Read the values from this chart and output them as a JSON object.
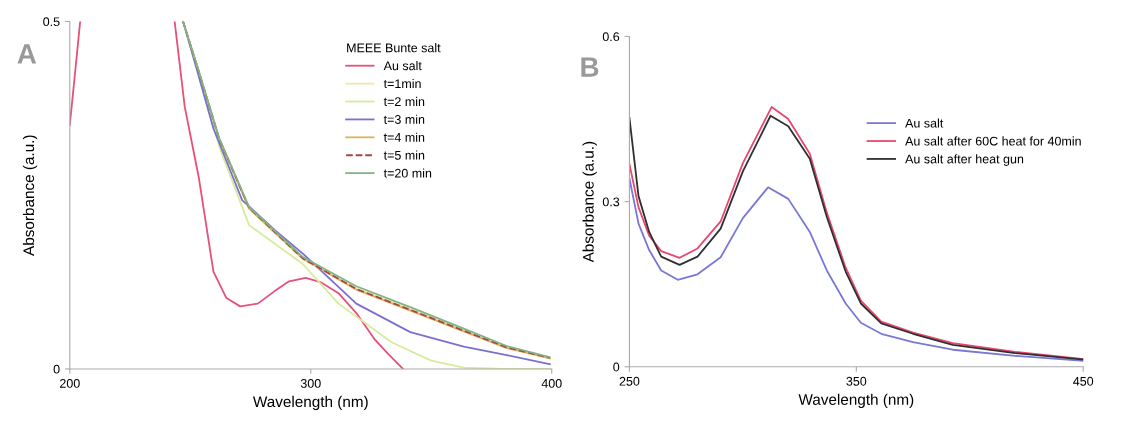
{
  "chart_data": [
    {
      "type": "line",
      "xlabel": "Wavelength (nm)",
      "ylabel": "Absorbance (a.u.)",
      "legend_title": "MEEE Bunte salt",
      "legend": "top right",
      "grid": false,
      "marker": "none",
      "line_style": "solid",
      "xlim": [
        200,
        400
      ],
      "ylim": [
        0,
        0.5
      ],
      "xticks": [
        200,
        300,
        400
      ],
      "yticks": [
        0,
        0.5
      ],
      "annotations": [
        "A"
      ],
      "series": [
        {
          "name": "Au salt",
          "color": "#e8507a",
          "x": [
            200,
            202,
            204.3,
            220,
            243.5,
            247.7,
            253.6,
            259.6,
            265,
            270.7,
            278,
            285,
            291,
            297.9,
            304,
            311.5,
            319,
            326.4,
            332,
            338.3
          ],
          "values": [
            0.351,
            0.42,
            0.5,
            null,
            0.5,
            0.377,
            0.274,
            0.14,
            0.102,
            0.09,
            0.094,
            0.112,
            0.126,
            0.131,
            0.125,
            0.109,
            0.08,
            0.043,
            0.022,
            0
          ]
        },
        {
          "name": "t=1min",
          "color": "#f2e6a0",
          "x": [
            262,
            274.4,
            296.7,
            318.9,
            341.3,
            363.5,
            381.3,
            399.2
          ],
          "values": [
            0.33,
            0.23,
            0.158,
            0.116,
            0.086,
            0.056,
            0.032,
            0.016
          ]
        },
        {
          "name": "t=2 min",
          "color": "#d6ec9c",
          "x": [
            253.6,
            262.5,
            274.4,
            296.7,
            311.5,
            333.7,
            350,
            363.5,
            380,
            399.2
          ],
          "values": [
            0.42,
            0.315,
            0.207,
            0.151,
            0.094,
            0.038,
            0.012,
            0.002,
            0,
            0
          ]
        },
        {
          "name": "t=3 min",
          "color": "#7a70d0",
          "x": [
            247,
            253.6,
            259.6,
            271.5,
            285,
            296.7,
            318.9,
            341.3,
            363.5,
            381.3,
            399.2
          ],
          "values": [
            0.5,
            0.42,
            0.346,
            0.243,
            0.2,
            0.166,
            0.094,
            0.053,
            0.032,
            0.02,
            0.007
          ]
        },
        {
          "name": "t=4 min",
          "color": "#e0b060",
          "x": [
            247,
            253.6,
            262,
            274.4,
            296.7,
            318.9,
            341.3,
            363.5,
            381.3,
            399.2
          ],
          "values": [
            0.5,
            0.427,
            0.331,
            0.231,
            0.159,
            0.114,
            0.084,
            0.054,
            0.03,
            0.015
          ]
        },
        {
          "name": "t=5 min",
          "color": "#a04848",
          "line_style": "dashed",
          "x": [
            247,
            253.6,
            262,
            274.4,
            296.7,
            318.9,
            341.3,
            363.5,
            381.3,
            399.2
          ],
          "values": [
            0.5,
            0.427,
            0.331,
            0.232,
            0.159,
            0.115,
            0.085,
            0.055,
            0.031,
            0.016
          ]
        },
        {
          "name": "t=20 min",
          "color": "#80b488",
          "x": [
            247,
            253.6,
            262,
            274.4,
            296.7,
            318.9,
            341.3,
            363.5,
            381.3,
            399.2
          ],
          "values": [
            0.5,
            0.428,
            0.332,
            0.233,
            0.161,
            0.119,
            0.089,
            0.058,
            0.033,
            0.017
          ]
        }
      ]
    },
    {
      "type": "line",
      "xlabel": "Wavelength (nm)",
      "ylabel": "Absorbance (a.u.)",
      "legend": "right",
      "grid": false,
      "marker": "none",
      "line_style": "solid",
      "xlim": [
        250,
        450
      ],
      "ylim": [
        0,
        0.6
      ],
      "xticks": [
        250,
        350,
        450
      ],
      "yticks": [
        0,
        0.3,
        0.6
      ],
      "annotations": [
        "B"
      ],
      "series": [
        {
          "name": "Au salt",
          "color": "#7878d8",
          "x": [
            250,
            254,
            258.7,
            264,
            271.3,
            280,
            290.2,
            300,
            311.1,
            320,
            329.5,
            337,
            345.3,
            352,
            361,
            375,
            392.5,
            420,
            450
          ],
          "values": [
            0.342,
            0.26,
            0.212,
            0.175,
            0.158,
            0.168,
            0.199,
            0.27,
            0.326,
            0.305,
            0.245,
            0.175,
            0.115,
            0.08,
            0.06,
            0.045,
            0.031,
            0.02,
            0.011
          ]
        },
        {
          "name": "Au salt after 60C heat for 40min",
          "color": "#e84870",
          "x": [
            250,
            254,
            258.7,
            264,
            272.1,
            280,
            290.2,
            300,
            312.7,
            320,
            329.5,
            337,
            345.3,
            352,
            361,
            375,
            392.5,
            420,
            450
          ],
          "values": [
            0.368,
            0.29,
            0.238,
            0.21,
            0.198,
            0.215,
            0.264,
            0.37,
            0.472,
            0.45,
            0.387,
            0.28,
            0.18,
            0.12,
            0.082,
            0.062,
            0.043,
            0.027,
            0.014
          ]
        },
        {
          "name": "Au salt after heat gun",
          "color": "#303030",
          "x": [
            250,
            254,
            258.7,
            264,
            272.1,
            280,
            290.2,
            300,
            312.2,
            320,
            329.5,
            337,
            345.3,
            352,
            361,
            375,
            392.5,
            420,
            450
          ],
          "values": [
            0.452,
            0.31,
            0.245,
            0.2,
            0.185,
            0.2,
            0.251,
            0.355,
            0.456,
            0.437,
            0.378,
            0.272,
            0.173,
            0.115,
            0.079,
            0.06,
            0.04,
            0.025,
            0.013
          ]
        }
      ]
    }
  ]
}
